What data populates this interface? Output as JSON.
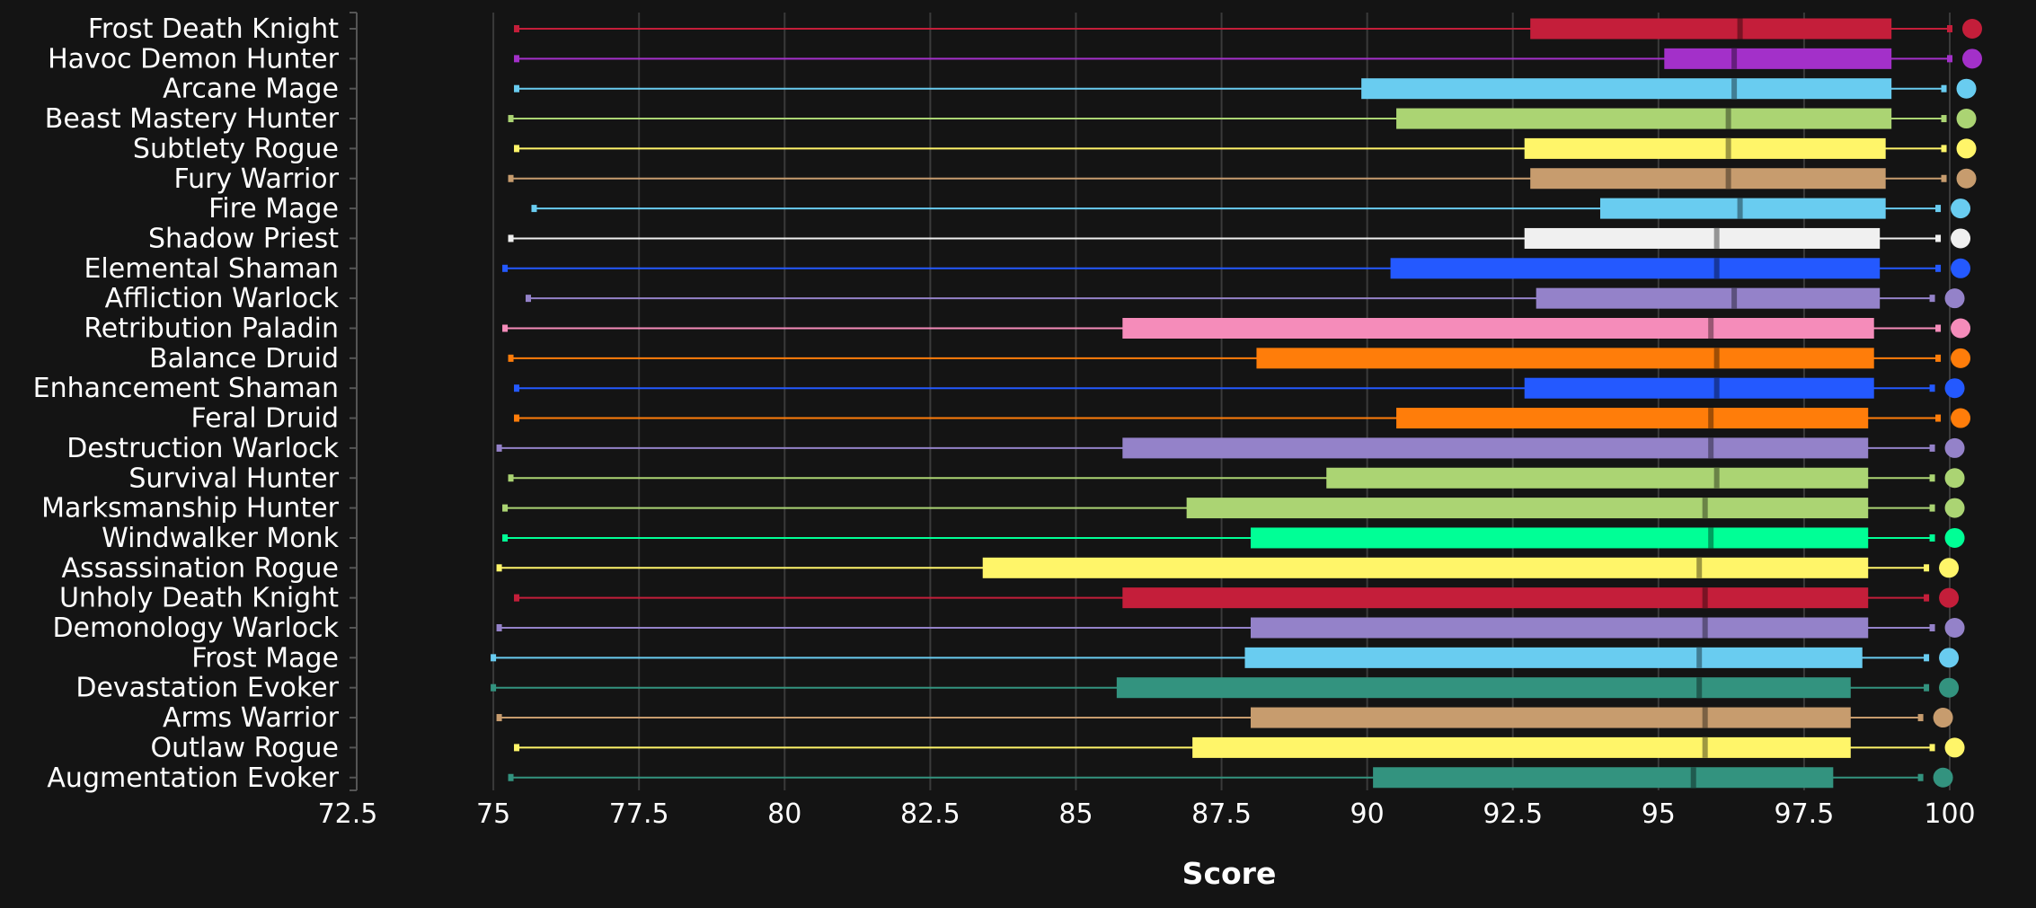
{
  "chart_data": {
    "type": "boxplot",
    "xlabel": "Score",
    "xlim": [
      72.5,
      100
    ],
    "xticks": [
      "72.5",
      "75",
      "77.5",
      "80",
      "82.5",
      "85",
      "87.5",
      "90",
      "92.5",
      "95",
      "97.5",
      "100"
    ],
    "grid": "vertical",
    "categories": [
      "Frost Death Knight",
      "Havoc Demon Hunter",
      "Arcane Mage",
      "Beast Mastery Hunter",
      "Subtlety Rogue",
      "Fury Warrior",
      "Fire Mage",
      "Shadow Priest",
      "Elemental Shaman",
      "Affliction Warlock",
      "Retribution Paladin",
      "Balance Druid",
      "Enhancement Shaman",
      "Feral Druid",
      "Destruction Warlock",
      "Survival Hunter",
      "Marksmanship Hunter",
      "Windwalker Monk",
      "Assassination Rogue",
      "Unholy Death Knight",
      "Demonology Warlock",
      "Frost Mage",
      "Devastation Evoker",
      "Arms Warrior",
      "Outlaw Rogue",
      "Augmentation Evoker"
    ],
    "series": [
      {
        "min": 75.4,
        "q1": 92.8,
        "median": 96.4,
        "q3": 99.0,
        "max": 100.0,
        "dot": 100.0,
        "color": "#C41E3A"
      },
      {
        "min": 75.4,
        "q1": 95.1,
        "median": 96.3,
        "q3": 99.0,
        "max": 100.0,
        "dot": 100.0,
        "color": "#A330C9"
      },
      {
        "min": 75.4,
        "q1": 89.9,
        "median": 96.3,
        "q3": 99.0,
        "max": 99.9,
        "dot": 99.9,
        "color": "#69CCF0"
      },
      {
        "min": 75.3,
        "q1": 90.5,
        "median": 96.2,
        "q3": 99.0,
        "max": 99.9,
        "dot": 99.9,
        "color": "#ABD473"
      },
      {
        "min": 75.4,
        "q1": 92.7,
        "median": 96.2,
        "q3": 98.9,
        "max": 99.9,
        "dot": 99.9,
        "color": "#FFF569"
      },
      {
        "min": 75.3,
        "q1": 92.8,
        "median": 96.2,
        "q3": 98.9,
        "max": 99.9,
        "dot": 99.9,
        "color": "#C79C6E"
      },
      {
        "min": 75.7,
        "q1": 94.0,
        "median": 96.4,
        "q3": 98.9,
        "max": 99.8,
        "dot": 99.8,
        "color": "#69CCF0"
      },
      {
        "min": 75.3,
        "q1": 92.7,
        "median": 96.0,
        "q3": 98.8,
        "max": 99.8,
        "dot": 99.8,
        "color": "#F0F0F0"
      },
      {
        "min": 75.2,
        "q1": 90.4,
        "median": 96.0,
        "q3": 98.8,
        "max": 99.8,
        "dot": 99.8,
        "color": "#2459FF"
      },
      {
        "min": 75.6,
        "q1": 92.9,
        "median": 96.3,
        "q3": 98.8,
        "max": 99.7,
        "dot": 99.7,
        "color": "#9482C9"
      },
      {
        "min": 75.2,
        "q1": 85.8,
        "median": 95.9,
        "q3": 98.7,
        "max": 99.8,
        "dot": 99.8,
        "color": "#F58CBA"
      },
      {
        "min": 75.3,
        "q1": 88.1,
        "median": 96.0,
        "q3": 98.7,
        "max": 99.8,
        "dot": 99.8,
        "color": "#FF7D0A"
      },
      {
        "min": 75.4,
        "q1": 92.7,
        "median": 96.0,
        "q3": 98.7,
        "max": 99.7,
        "dot": 99.7,
        "color": "#2459FF"
      },
      {
        "min": 75.4,
        "q1": 90.5,
        "median": 95.9,
        "q3": 98.6,
        "max": 99.8,
        "dot": 99.8,
        "color": "#FF7D0A"
      },
      {
        "min": 75.1,
        "q1": 85.8,
        "median": 95.9,
        "q3": 98.6,
        "max": 99.7,
        "dot": 99.7,
        "color": "#9482C9"
      },
      {
        "min": 75.3,
        "q1": 89.3,
        "median": 96.0,
        "q3": 98.6,
        "max": 99.7,
        "dot": 99.7,
        "color": "#ABD473"
      },
      {
        "min": 75.2,
        "q1": 86.9,
        "median": 95.8,
        "q3": 98.6,
        "max": 99.7,
        "dot": 99.7,
        "color": "#ABD473"
      },
      {
        "min": 75.2,
        "q1": 88.0,
        "median": 95.9,
        "q3": 98.6,
        "max": 99.7,
        "dot": 99.7,
        "color": "#00FF96"
      },
      {
        "min": 75.1,
        "q1": 83.4,
        "median": 95.7,
        "q3": 98.6,
        "max": 99.6,
        "dot": 99.6,
        "color": "#FFF569"
      },
      {
        "min": 75.4,
        "q1": 85.8,
        "median": 95.8,
        "q3": 98.6,
        "max": 99.6,
        "dot": 99.6,
        "color": "#C41E3A"
      },
      {
        "min": 75.1,
        "q1": 88.0,
        "median": 95.8,
        "q3": 98.6,
        "max": 99.7,
        "dot": 99.7,
        "color": "#9482C9"
      },
      {
        "min": 75.0,
        "q1": 87.9,
        "median": 95.7,
        "q3": 98.5,
        "max": 99.6,
        "dot": 99.6,
        "color": "#69CCF0"
      },
      {
        "min": 75.0,
        "q1": 85.7,
        "median": 95.7,
        "q3": 98.3,
        "max": 99.6,
        "dot": 99.6,
        "color": "#33937F"
      },
      {
        "min": 75.1,
        "q1": 88.0,
        "median": 95.8,
        "q3": 98.3,
        "max": 99.5,
        "dot": 99.5,
        "color": "#C79C6E"
      },
      {
        "min": 75.4,
        "q1": 87.0,
        "median": 95.8,
        "q3": 98.3,
        "max": 99.7,
        "dot": 99.7,
        "color": "#FFF569"
      },
      {
        "min": 75.3,
        "q1": 90.1,
        "median": 95.6,
        "q3": 98.0,
        "max": 99.5,
        "dot": 99.5,
        "color": "#33937F"
      }
    ]
  }
}
